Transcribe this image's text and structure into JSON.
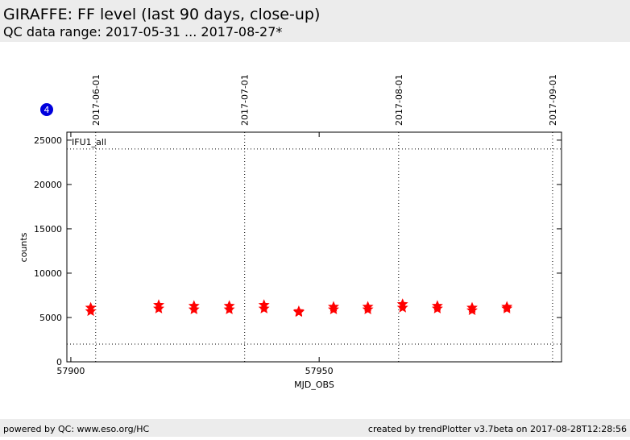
{
  "header": {
    "title": "GIRAFFE: FF level (last 90 days, close-up)",
    "subtitle": "QC data range: 2017-05-31 ... 2017-08-27*"
  },
  "footer": {
    "left": "powered by QC: www.eso.org/HC",
    "right": "created by trendPlotter v3.7beta on 2017-08-28T12:28:56"
  },
  "badge": "4",
  "chart_data": {
    "type": "scatter",
    "series_label": "IFU1_all",
    "xlabel": "MJD_OBS",
    "ylabel": "counts",
    "x": [
      57904.0,
      57904.0,
      57917.7,
      57917.7,
      57924.8,
      57924.8,
      57931.9,
      57931.9,
      57938.9,
      57938.9,
      57945.9,
      57945.9,
      57952.9,
      57952.9,
      57959.8,
      57959.8,
      57966.8,
      57966.8,
      57973.8,
      57973.8,
      57980.8,
      57980.8,
      57987.8,
      57987.8
    ],
    "values": [
      6100,
      5700,
      6400,
      6000,
      6300,
      5900,
      6300,
      5900,
      6400,
      6000,
      5700,
      5600,
      6200,
      5900,
      6200,
      5900,
      6500,
      6100,
      6300,
      6000,
      6100,
      5800,
      6200,
      6000
    ],
    "color": "#ff0000",
    "xlim": [
      57899.2,
      57998.8
    ],
    "xticks": [
      57900,
      57950
    ],
    "ylim": [
      0,
      25900
    ],
    "yticks": [
      0,
      5000,
      10000,
      15000,
      20000,
      25000
    ],
    "hlines": [
      24000,
      2000
    ],
    "date_lines": [
      {
        "value": 57905,
        "label": "2017-06-01"
      },
      {
        "value": 57935,
        "label": "2017-07-01"
      },
      {
        "value": 57966,
        "label": "2017-08-01"
      },
      {
        "value": 57997,
        "label": "2017-09-01"
      }
    ]
  }
}
